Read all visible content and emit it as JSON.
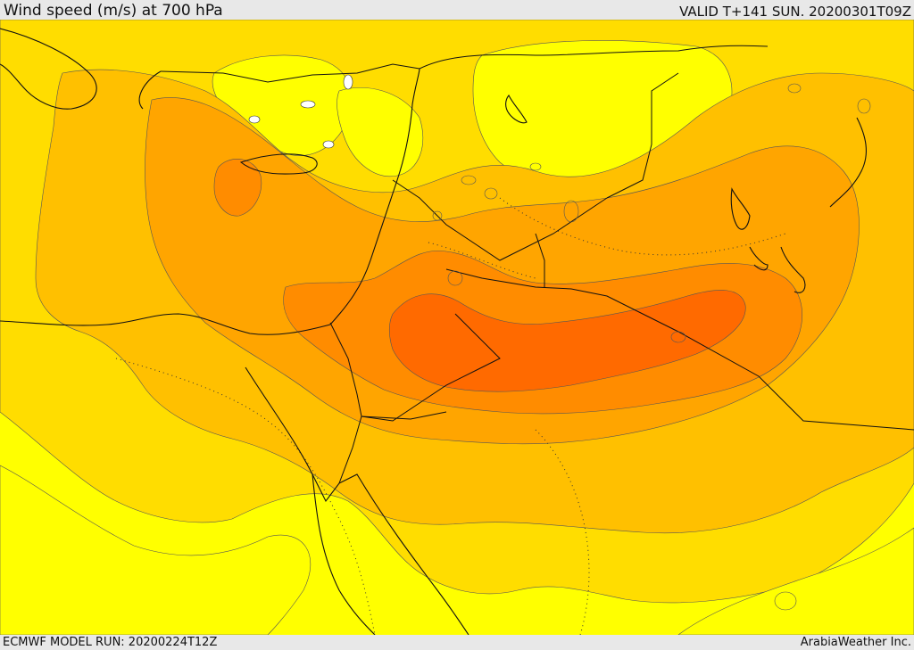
{
  "header": {
    "title": "Wind speed (m/s) at 700 hPa",
    "valid": "VALID T+141 SUN. 20200301T09Z"
  },
  "footer": {
    "model_run": "ECMWF MODEL RUN: 20200224T12Z",
    "credit": "ArabiaWeather Inc."
  },
  "colors": {
    "peach": "#FFDCA8",
    "yellow": "#FFFF00",
    "gold": "#FFDD00",
    "amber": "#FFC000",
    "orange_light": "#FFA500",
    "orange": "#FF8C00",
    "orange_dark": "#FF6A00",
    "red_orange": "#FF5000"
  }
}
